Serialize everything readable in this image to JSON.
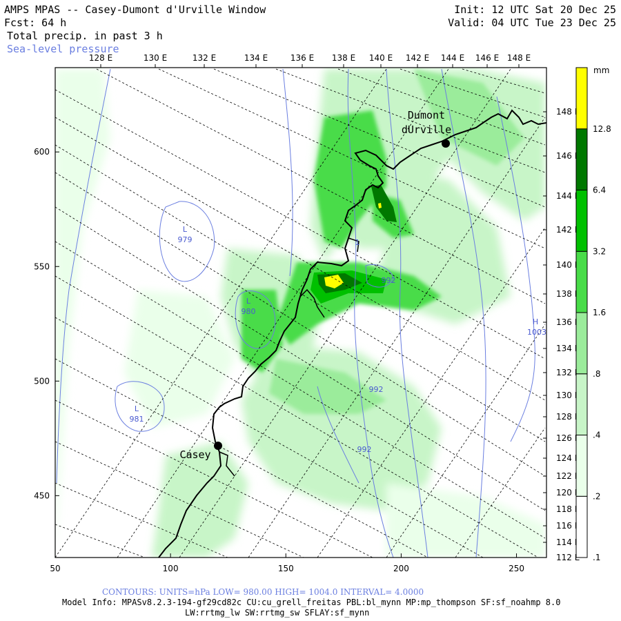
{
  "header": {
    "title": "AMPS MPAS -- Casey-Dumont d'Urville Window",
    "forecast": "Fcst:    64 h",
    "init": "Init: 12 UTC Sat 20 Dec 25",
    "valid": "Valid: 04 UTC Tue 23 Dec 25",
    "field": "Total precip. in past 3 h",
    "overlay": "Sea-level pressure"
  },
  "axes": {
    "top_lon_labels": [
      "128 E",
      "130 E",
      "132 E",
      "134 E",
      "136 E",
      "138 E",
      "140 E",
      "142 E",
      "144 E",
      "146 E",
      "148 E"
    ],
    "right_lon_labels": [
      "148 E",
      "146 E",
      "144 E",
      "142 E",
      "140 E",
      "138 E",
      "136 E",
      "134 E",
      "132 E",
      "130 E",
      "128 E",
      "126 E",
      "124 E",
      "122 E",
      "120 E",
      "118 E",
      "116 E",
      "114 E",
      "112 E"
    ],
    "x_grid_labels": [
      "50",
      "100",
      "150",
      "200",
      "250"
    ],
    "y_grid_labels": [
      "600",
      "550",
      "500",
      "450"
    ]
  },
  "colorbar": {
    "unit": "mm",
    "levels": [
      ".1",
      ".2",
      ".4",
      ".8",
      "1.6",
      "3.2",
      "6.4",
      "12.8"
    ],
    "colors": [
      "#ffffff",
      "#eaffea",
      "#c8f5c8",
      "#9bec9b",
      "#48dc48",
      "#00c000",
      "#007800",
      "#ffff00"
    ]
  },
  "places": [
    {
      "name": "Dumont",
      "name2": "dUrville"
    },
    {
      "name": "Casey"
    }
  ],
  "pressure_labels": [
    {
      "type": "L",
      "value": "979"
    },
    {
      "type": "L",
      "value": "980"
    },
    {
      "type": "L",
      "value": "981"
    },
    {
      "type": "H",
      "value": "1003"
    },
    {
      "value": "992"
    },
    {
      "value": "992"
    },
    {
      "value": "992"
    },
    {
      "value": "1"
    }
  ],
  "footer": {
    "contours": "CONTOURS:  UNITS=hPa  LOW=  980.00       HIGH=  1004.0       INTERVAL=    4.0000",
    "model_info": "Model Info: MPASv8.2.3-194-gf29cd82c CU:cu_grell_freitas PBL:bl_mynn MP:mp_thompson SF:sf_noahmp 8.0",
    "model_info2": "LW:rrtmg_lw SW:rrtmg_sw SFLAY:sf_mynn"
  }
}
